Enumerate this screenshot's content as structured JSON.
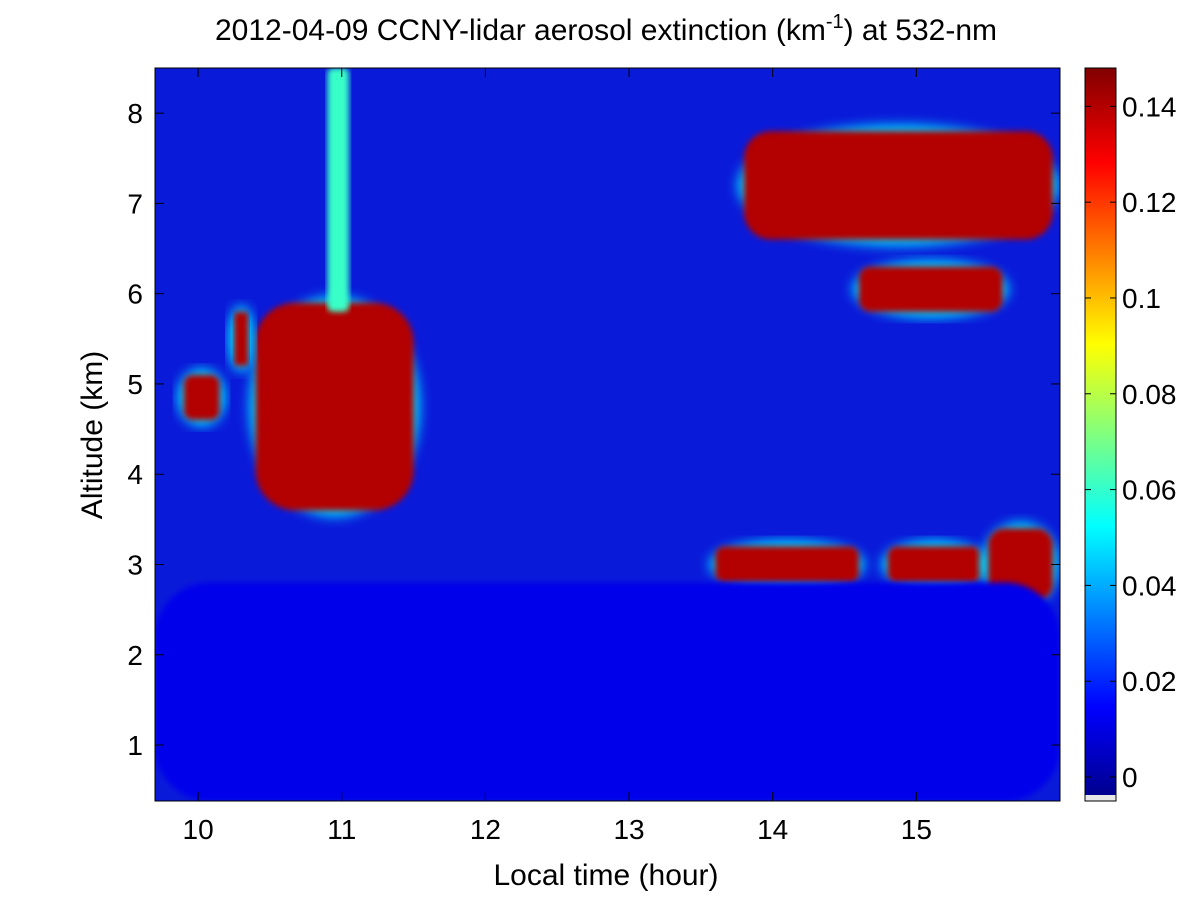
{
  "chart_data": {
    "type": "heatmap",
    "title": {
      "prefix": "2012-04-09 CCNY-lidar aerosol extinction (km",
      "superscript": "-1",
      "suffix": ") at 532-nm"
    },
    "xlabel": "Local time (hour)",
    "ylabel": "Altitude (km)",
    "xlim": [
      9.7,
      16.0
    ],
    "ylim": [
      0.38,
      8.5
    ],
    "x_ticks": [
      10,
      11,
      12,
      13,
      14,
      15
    ],
    "y_ticks": [
      1,
      2,
      3,
      4,
      5,
      6,
      7,
      8
    ],
    "colorbar": {
      "range": [
        -0.005,
        0.148
      ],
      "ticks": [
        0,
        0.02,
        0.04,
        0.06,
        0.08,
        0.1,
        0.12,
        0.14
      ],
      "tick_labels": [
        "0",
        "0.02",
        "0.04",
        "0.06",
        "0.08",
        "0.1",
        "0.12",
        "0.14"
      ],
      "colormap": "jet",
      "stops": [
        "#00008f",
        "#0000ff",
        "#00ffff",
        "#ffff00",
        "#ff0000",
        "#800000"
      ]
    },
    "features": [
      {
        "name": "plume",
        "x": [
          10.4,
          11.5
        ],
        "y": [
          3.6,
          5.9
        ],
        "value": 0.14
      },
      {
        "name": "plume-top",
        "x": [
          10.25,
          10.35
        ],
        "y": [
          5.2,
          5.8
        ],
        "value": 0.14
      },
      {
        "name": "small-cloud",
        "x": [
          9.9,
          10.15
        ],
        "y": [
          4.6,
          5.1
        ],
        "value": 0.14
      },
      {
        "name": "column",
        "x": [
          10.9,
          11.05
        ],
        "y": [
          5.8,
          8.5
        ],
        "value": 0.06
      },
      {
        "name": "high-layer",
        "x": [
          13.8,
          15.95
        ],
        "y": [
          6.6,
          7.8
        ],
        "value": 0.14
      },
      {
        "name": "mid-layer",
        "x": [
          14.6,
          15.6
        ],
        "y": [
          5.8,
          6.3
        ],
        "value": 0.14
      },
      {
        "name": "low-layer-1",
        "x": [
          13.6,
          14.6
        ],
        "y": [
          2.8,
          3.2
        ],
        "value": 0.14
      },
      {
        "name": "low-layer-2",
        "x": [
          14.8,
          15.45
        ],
        "y": [
          2.8,
          3.2
        ],
        "value": 0.14
      },
      {
        "name": "low-layer-3",
        "x": [
          15.5,
          15.95
        ],
        "y": [
          2.6,
          3.4
        ],
        "value": 0.14
      },
      {
        "name": "aerosol-boundary-layer",
        "x": [
          9.7,
          16.0
        ],
        "y": [
          0.38,
          2.8
        ],
        "value": 0.01
      }
    ]
  }
}
